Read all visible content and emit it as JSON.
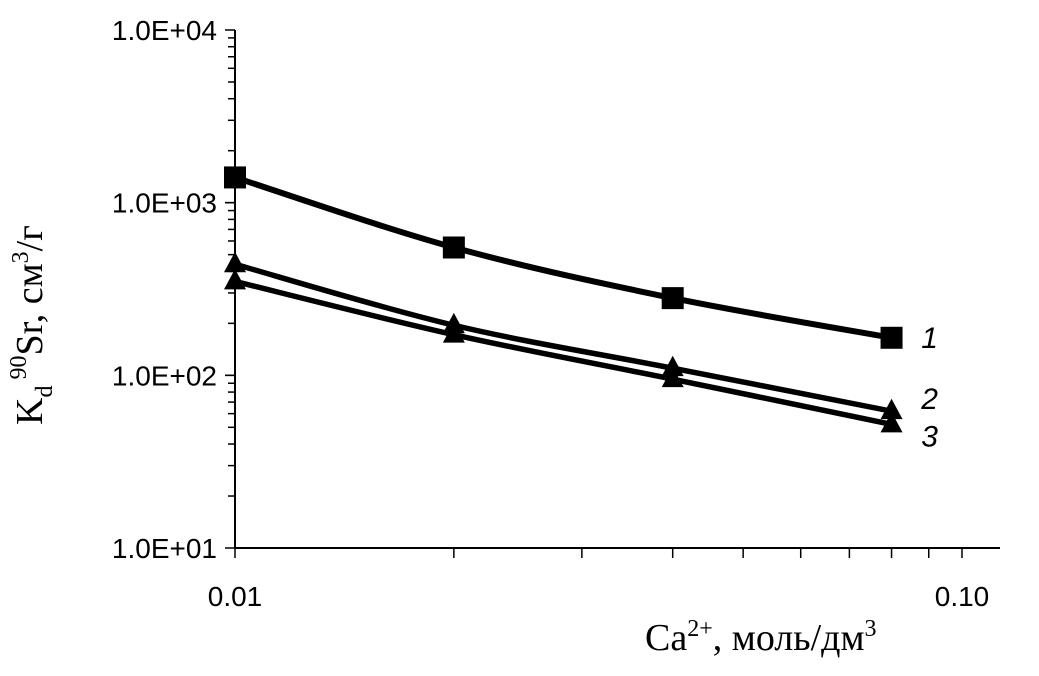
{
  "chart_data": {
    "type": "line",
    "x_scale": "log",
    "y_scale": "log",
    "xlim": [
      0.01,
      0.1
    ],
    "ylim": [
      10,
      10000
    ],
    "x_ticks": [
      "0.01",
      "0.10"
    ],
    "y_ticks": [
      "1.0E+01",
      "1.0E+02",
      "1.0E+03",
      "1.0E+04"
    ],
    "xlabel": {
      "base": "Ca",
      "sup": "2+",
      "rest": ", моль/дм",
      "sup2": "3"
    },
    "ylabel": {
      "k": "K",
      "sub": "d",
      "iso": "90",
      "el": "Sr, см",
      "sup": "3",
      "tail": "/г"
    },
    "grid": false,
    "series": [
      {
        "name": "1",
        "marker": "square",
        "x": [
          0.01,
          0.02,
          0.04,
          0.08
        ],
        "y": [
          1400,
          550,
          280,
          165
        ]
      },
      {
        "name": "2",
        "marker": "triangle",
        "x": [
          0.01,
          0.02,
          0.04,
          0.08
        ],
        "y": [
          440,
          195,
          110,
          62
        ]
      },
      {
        "name": "3",
        "marker": "triangle",
        "x": [
          0.01,
          0.02,
          0.04,
          0.08
        ],
        "y": [
          350,
          172,
          95,
          52
        ]
      }
    ]
  }
}
